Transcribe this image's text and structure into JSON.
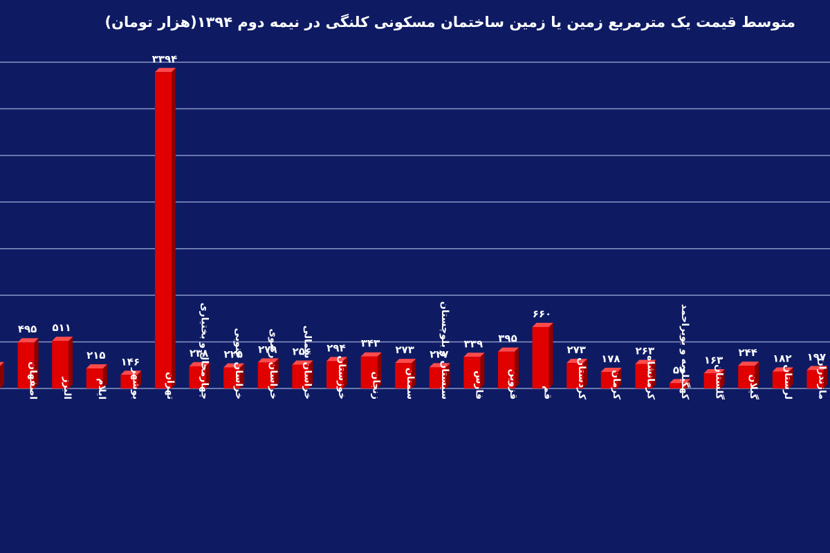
{
  "chart_data": {
    "type": "bar",
    "title": "متوسط قیمت یک مترمربع زمین یا زمین ساختمان مسکونی کلنگی در نیمه دوم ۱۳۹۴(هزار تومان)",
    "xlabel": "",
    "ylabel": "",
    "ylim": [
      0,
      3500
    ],
    "grid": true,
    "legend": "none",
    "bar_color": "#e00000",
    "bar_side_color": "#8c0000",
    "gridline_color": "#8a95c4",
    "value_labels": true,
    "categories": [
      "",
      "اصفهان",
      "البرز",
      "ایلام",
      "بوشهر",
      "تهران",
      "چهارمحال و بختیاری",
      "خراسان جنوبی",
      "خراسان رضوی",
      "خراسان شمالی",
      "خوزستان",
      "زنجان",
      "سمنان",
      "سیستان و بلوچستان",
      "فارس",
      "قزوین",
      "قم",
      "کردستان",
      "کرمان",
      "کرمانشاه",
      "کهگیلویه و بویراحمد",
      "گلستان",
      "گیلان",
      "لرستان",
      "مازندران"
    ],
    "values": [
      240,
      495,
      511,
      215,
      146,
      3394,
      238,
      225,
      279,
      256,
      294,
      343,
      273,
      227,
      339,
      395,
      660,
      273,
      178,
      263,
      57,
      163,
      244,
      182,
      197
    ],
    "value_labels_text": [
      "",
      "۴۹۵",
      "۵۱۱",
      "۲۱۵",
      "۱۴۶",
      "۳۳۹۴",
      "۲۳۸",
      "۲۲۵",
      "۲۷۹",
      "۲۵۶",
      "۲۹۴",
      "۳۴۳",
      "۲۷۳",
      "۲۲۷",
      "۳۳۹",
      "۳۹۵",
      "۶۶۰",
      "۲۷۳",
      "۱۷۸",
      "۲۶۳",
      "۵۷",
      "۱۶۳",
      "۲۴۴",
      "۱۸۲",
      "۱۹۷"
    ]
  }
}
